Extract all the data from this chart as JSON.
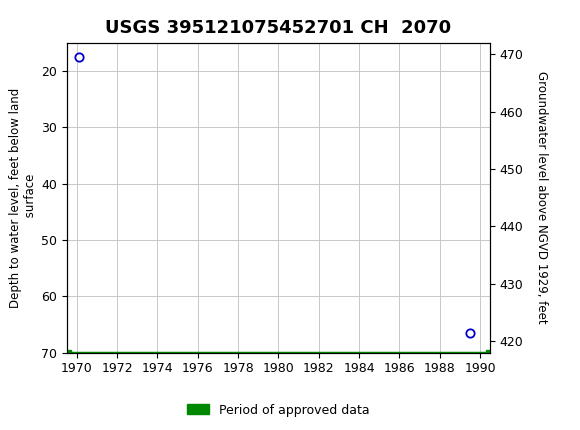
{
  "title": "USGS 395121075452701 CH  2070",
  "header_bg_color": "#1a7a47",
  "left_ylabel": "Depth to water level, feet below land\n surface",
  "right_ylabel": "Groundwater level above NGVD 1929, feet",
  "xlim": [
    1969.5,
    1990.5
  ],
  "ylim_left_top": 15,
  "ylim_left_bottom": 70,
  "ylim_right_bottom": 418,
  "ylim_right_top": 472,
  "left_yticks": [
    20,
    30,
    40,
    50,
    60,
    70
  ],
  "right_yticks": [
    420,
    430,
    440,
    450,
    460,
    470
  ],
  "xticks": [
    1970,
    1972,
    1974,
    1976,
    1978,
    1980,
    1982,
    1984,
    1986,
    1988,
    1990
  ],
  "data_points": [
    {
      "x": 1970.1,
      "y_left": 17.5
    },
    {
      "x": 1989.5,
      "y_left": 66.5
    }
  ],
  "point_color": "#0000CC",
  "green_bar_color": "#008800",
  "legend_label": "Period of approved data",
  "grid_color": "#C8C8C8",
  "bg_color": "#FFFFFF",
  "plot_border_color": "#000000",
  "title_fontsize": 13,
  "axis_label_fontsize": 8.5,
  "tick_fontsize": 9
}
